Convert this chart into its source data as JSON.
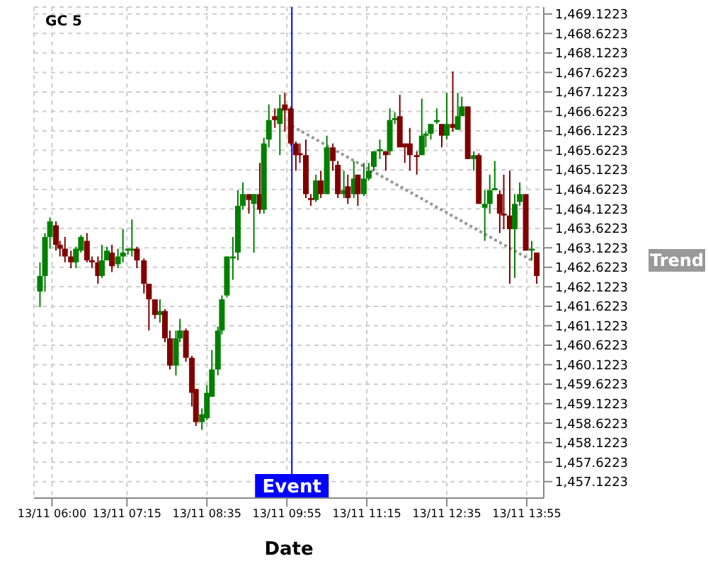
{
  "chart_data": {
    "type": "candlestick",
    "title": "GC 5",
    "xlabel": "Date",
    "x": [
      "--11-13T05:48",
      "--11-13T05:53",
      "--11-13T05:58",
      "--11-13T06:04",
      "--11-13T06:08",
      "--11-13T06:13",
      "--11-13T06:19",
      "--11-13T06:24",
      "--11-13T06:29",
      "--11-13T06:35",
      "--11-13T06:40",
      "--11-13T06:46",
      "--11-13T06:50",
      "--11-13T06:55",
      "--11-13T07:00",
      "--11-13T07:06",
      "--11-13T07:11",
      "--11-13T07:16",
      "--11-13T07:20",
      "--11-13T07:25",
      "--11-13T07:32",
      "--11-13T07:37",
      "--11-13T07:43",
      "--11-13T07:48",
      "--11-13T07:53",
      "--11-13T07:58",
      "--11-13T08:04",
      "--11-13T08:08",
      "--11-13T08:14",
      "--11-13T08:20",
      "--11-13T08:24",
      "--11-13T08:30",
      "--11-13T08:35",
      "--11-13T08:40",
      "--11-13T08:46",
      "--11-13T08:50",
      "--11-13T08:55",
      "--11-13T09:01",
      "--11-13T09:06",
      "--11-13T09:11",
      "--11-13T09:17",
      "--11-13T09:22",
      "--11-13T09:28",
      "--11-13T09:32",
      "--11-13T09:37",
      "--11-13T09:43",
      "--11-13T09:48",
      "--11-13T09:53",
      "--11-13T09:59",
      "--11-13T10:04",
      "--11-13T10:08",
      "--11-13T10:14",
      "--11-13T10:19",
      "--11-13T10:24",
      "--11-13T10:29",
      "--11-13T10:35",
      "--11-13T10:41",
      "--11-13T10:46",
      "--11-13T10:52",
      "--11-13T10:56",
      "--11-13T11:02",
      "--11-13T11:06",
      "--11-13T11:12",
      "--11-13T11:17",
      "--11-13T11:22",
      "--11-13T11:28",
      "--11-13T11:34",
      "--11-13T11:38",
      "--11-13T11:43",
      "--11-13T11:48",
      "--11-13T11:53",
      "--11-13T11:58",
      "--11-13T12:05",
      "--11-13T12:10",
      "--11-13T12:14",
      "--11-13T12:19",
      "--11-13T12:25",
      "--11-13T12:30",
      "--11-13T12:35",
      "--11-13T12:41",
      "--11-13T12:46",
      "--11-13T12:50",
      "--11-13T12:56",
      "--11-13T13:02",
      "--11-13T13:07",
      "--11-13T13:13",
      "--11-13T13:18",
      "--11-13T13:23",
      "--11-13T13:28",
      "--11-13T13:32",
      "--11-13T13:38",
      "--11-13T13:43",
      "--11-13T13:48",
      "--11-13T13:54",
      "--11-13T14:00",
      "--11-13T14:05"
    ],
    "ohlc": [
      [
        1462.0,
        1462.75,
        1461.6,
        1462.4
      ],
      [
        1462.4,
        1463.5,
        1462.0,
        1463.4
      ],
      [
        1463.4,
        1463.9,
        1463.1,
        1463.8
      ],
      [
        1463.7,
        1463.8,
        1463.05,
        1463.2
      ],
      [
        1463.2,
        1463.3,
        1462.9,
        1463.1
      ],
      [
        1463.1,
        1463.4,
        1462.75,
        1462.9
      ],
      [
        1462.9,
        1463.05,
        1462.6,
        1462.75
      ],
      [
        1462.75,
        1463.15,
        1462.6,
        1463.1
      ],
      [
        1463.05,
        1463.45,
        1463.0,
        1463.4
      ],
      [
        1463.3,
        1463.5,
        1462.75,
        1462.8
      ],
      [
        1462.8,
        1462.9,
        1462.6,
        1462.75
      ],
      [
        1462.75,
        1462.9,
        1462.2,
        1462.4
      ],
      [
        1462.4,
        1463.2,
        1462.35,
        1462.8
      ],
      [
        1462.8,
        1463.15,
        1462.8,
        1463.05
      ],
      [
        1463.0,
        1463.2,
        1462.5,
        1462.65
      ],
      [
        1462.7,
        1463.1,
        1462.6,
        1462.9
      ],
      [
        1462.9,
        1463.6,
        1462.75,
        1463.0
      ],
      [
        1463.05,
        1463.1,
        1462.95,
        1463.1
      ],
      [
        1463.05,
        1463.85,
        1462.9,
        1463.1
      ],
      [
        1463.1,
        1463.15,
        1462.6,
        1462.8
      ],
      [
        1462.8,
        1462.85,
        1461.95,
        1462.2
      ],
      [
        1462.2,
        1462.2,
        1461.0,
        1461.8
      ],
      [
        1461.8,
        1461.8,
        1461.3,
        1461.4
      ],
      [
        1461.4,
        1461.8,
        1461.2,
        1461.5
      ],
      [
        1461.5,
        1461.55,
        1460.7,
        1460.8
      ],
      [
        1460.8,
        1461.0,
        1460.0,
        1460.1
      ],
      [
        1460.1,
        1461.0,
        1459.85,
        1460.8
      ],
      [
        1460.8,
        1461.3,
        1460.7,
        1461.0
      ],
      [
        1461.0,
        1461.05,
        1460.2,
        1460.3
      ],
      [
        1460.3,
        1460.35,
        1459.05,
        1459.4
      ],
      [
        1459.5,
        1459.5,
        1458.55,
        1458.65
      ],
      [
        1458.65,
        1459.0,
        1458.45,
        1458.85
      ],
      [
        1458.75,
        1459.6,
        1458.7,
        1459.4
      ],
      [
        1459.3,
        1460.5,
        1459.3,
        1460.0
      ],
      [
        1460.0,
        1461.1,
        1459.85,
        1461.0
      ],
      [
        1461.0,
        1461.9,
        1460.9,
        1461.8
      ],
      [
        1461.9,
        1462.9,
        1461.85,
        1462.9
      ],
      [
        1462.85,
        1463.4,
        1462.3,
        1462.9
      ],
      [
        1463.0,
        1464.6,
        1462.8,
        1464.2
      ],
      [
        1464.2,
        1464.8,
        1464.1,
        1464.5
      ],
      [
        1464.5,
        1464.5,
        1464.0,
        1464.35
      ],
      [
        1464.25,
        1464.5,
        1463.0,
        1464.5
      ],
      [
        1464.5,
        1465.3,
        1464.0,
        1464.1
      ],
      [
        1464.1,
        1465.95,
        1464.0,
        1465.8
      ],
      [
        1465.9,
        1466.8,
        1465.7,
        1466.4
      ],
      [
        1466.5,
        1466.7,
        1466.2,
        1466.4
      ],
      [
        1466.3,
        1467.05,
        1465.5,
        1466.7
      ],
      [
        1466.8,
        1467.1,
        1466.1,
        1466.65
      ],
      [
        1466.7,
        1466.75,
        1465.75,
        1465.8
      ],
      [
        1465.8,
        1465.85,
        1465.1,
        1465.5
      ],
      [
        1465.55,
        1465.8,
        1465.3,
        1465.5
      ],
      [
        1465.5,
        1465.9,
        1464.4,
        1464.5
      ],
      [
        1464.4,
        1464.5,
        1464.2,
        1464.35
      ],
      [
        1464.35,
        1465.0,
        1464.3,
        1464.85
      ],
      [
        1464.85,
        1465.1,
        1464.4,
        1464.5
      ],
      [
        1464.5,
        1466.0,
        1464.5,
        1465.7
      ],
      [
        1465.7,
        1465.8,
        1465.1,
        1465.35
      ],
      [
        1465.25,
        1465.35,
        1464.4,
        1464.5
      ],
      [
        1464.5,
        1465.1,
        1464.4,
        1464.6
      ],
      [
        1464.7,
        1465.0,
        1464.25,
        1464.4
      ],
      [
        1464.5,
        1465.35,
        1464.4,
        1464.9
      ],
      [
        1465.0,
        1465.0,
        1464.2,
        1464.5
      ],
      [
        1464.5,
        1465.3,
        1464.45,
        1464.9
      ],
      [
        1464.9,
        1465.3,
        1464.85,
        1465.1
      ],
      [
        1465.2,
        1465.6,
        1465.1,
        1465.6
      ],
      [
        1465.6,
        1465.9,
        1465.4,
        1465.65
      ],
      [
        1465.6,
        1465.6,
        1465.1,
        1465.5
      ],
      [
        1465.6,
        1466.7,
        1465.5,
        1466.4
      ],
      [
        1466.4,
        1466.6,
        1466.3,
        1466.45
      ],
      [
        1466.5,
        1467.05,
        1465.7,
        1465.7
      ],
      [
        1465.8,
        1465.8,
        1465.3,
        1465.7
      ],
      [
        1465.8,
        1466.2,
        1465.1,
        1465.5
      ],
      [
        1465.5,
        1465.6,
        1465.0,
        1465.45
      ],
      [
        1465.5,
        1466.95,
        1465.5,
        1466.0
      ],
      [
        1466.0,
        1466.1,
        1465.7,
        1466.05
      ],
      [
        1466.05,
        1466.3,
        1465.9,
        1466.3
      ],
      [
        1466.35,
        1466.7,
        1466.3,
        1466.4
      ],
      [
        1466.3,
        1466.3,
        1465.7,
        1466.0
      ],
      [
        1466.0,
        1467.1,
        1465.9,
        1466.3
      ],
      [
        1466.3,
        1467.65,
        1466.1,
        1466.2
      ],
      [
        1466.15,
        1467.1,
        1466.15,
        1466.5
      ],
      [
        1466.5,
        1467.0,
        1466.5,
        1466.75
      ],
      [
        1466.75,
        1466.75,
        1465.4,
        1465.4
      ],
      [
        1465.4,
        1465.6,
        1465.1,
        1465.5
      ],
      [
        1465.5,
        1465.55,
        1464.25,
        1464.25
      ],
      [
        1464.15,
        1464.6,
        1463.3,
        1464.25
      ],
      [
        1464.25,
        1465.0,
        1464.0,
        1464.6
      ],
      [
        1464.6,
        1465.35,
        1464.6,
        1464.65
      ],
      [
        1464.5,
        1464.6,
        1463.5,
        1464.0
      ],
      [
        1464.0,
        1465.0,
        1463.6,
        1463.95
      ],
      [
        1463.95,
        1465.1,
        1462.2,
        1463.6
      ],
      [
        1463.6,
        1464.5,
        1462.35,
        1464.25
      ],
      [
        1464.3,
        1464.8,
        1464.2,
        1464.5
      ],
      [
        1464.5,
        1464.5,
        1463.05,
        1463.05
      ],
      [
        1463.05,
        1463.3,
        1462.8,
        1463.1
      ],
      [
        1463.0,
        1463.0,
        1462.2,
        1462.4
      ]
    ],
    "series": [
      {
        "type": "line",
        "name": "Trend",
        "color": "#999999",
        "line_style": "dotted",
        "x": [
          "--11-13T10:00",
          "--11-13T14:00"
        ],
        "values": [
          1466.25,
          1462.8
        ]
      }
    ],
    "ref_lines": [
      {
        "axis": "x",
        "value": "--11-13T10:00",
        "label": "Event",
        "color": "#0000ff"
      }
    ],
    "xlim": [
      "--11-13T05:42",
      "--11-13T14:12"
    ],
    "xticks": [
      {
        "value": "--11-13T06:00",
        "label": "13/11 06:00"
      },
      {
        "value": "--11-13T07:15",
        "label": "13/11 07:15"
      },
      {
        "value": "--11-13T08:35",
        "label": "13/11 08:35"
      },
      {
        "value": "--11-13T09:55",
        "label": "13/11 09:55"
      },
      {
        "value": "--11-13T11:15",
        "label": "13/11 11:15"
      },
      {
        "value": "--11-13T12:35",
        "label": "13/11 12:35"
      },
      {
        "value": "--11-13T13:55",
        "label": "13/11 13:55"
      }
    ],
    "ylim": [
      1456.7,
      1469.3
    ],
    "yticks": [
      {
        "value": 1457.1223,
        "label": "1,457.1223"
      },
      {
        "value": 1457.6223,
        "label": "1,457.6223"
      },
      {
        "value": 1458.1223,
        "label": "1,458.1223"
      },
      {
        "value": 1458.6223,
        "label": "1,458.6223"
      },
      {
        "value": 1459.1223,
        "label": "1,459.1223"
      },
      {
        "value": 1459.6223,
        "label": "1,459.6223"
      },
      {
        "value": 1460.1223,
        "label": "1,460.1223"
      },
      {
        "value": 1460.6223,
        "label": "1,460.6223"
      },
      {
        "value": 1461.1223,
        "label": "1,461.1223"
      },
      {
        "value": 1461.6223,
        "label": "1,461.6223"
      },
      {
        "value": 1462.1223,
        "label": "1,462.1223"
      },
      {
        "value": 1462.6223,
        "label": "1,462.6223"
      },
      {
        "value": 1463.1223,
        "label": "1,463.1223"
      },
      {
        "value": 1463.6223,
        "label": "1,463.6223"
      },
      {
        "value": 1464.1223,
        "label": "1,464.1223"
      },
      {
        "value": 1464.6223,
        "label": "1,464.6223"
      },
      {
        "value": 1465.1223,
        "label": "1,465.1223"
      },
      {
        "value": 1465.6223,
        "label": "1,465.6223"
      },
      {
        "value": 1466.1223,
        "label": "1,466.1223"
      },
      {
        "value": 1466.6223,
        "label": "1,466.6223"
      },
      {
        "value": 1467.1223,
        "label": "1,467.1223"
      },
      {
        "value": 1467.6223,
        "label": "1,467.6223"
      },
      {
        "value": 1468.1223,
        "label": "1,468.1223"
      },
      {
        "value": 1468.6223,
        "label": "1,468.6223"
      },
      {
        "value": 1469.1223,
        "label": "1,469.1223"
      }
    ],
    "grid": true
  }
}
